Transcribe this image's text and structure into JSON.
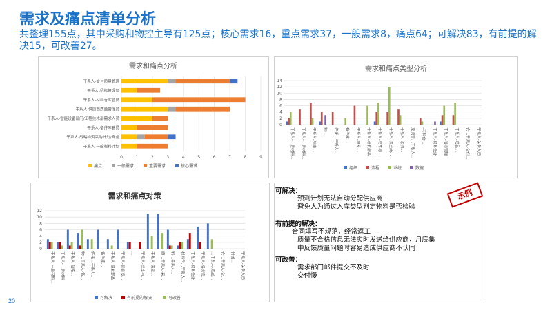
{
  "header": {
    "title": "需求及痛点清单分析",
    "summary": "共整理155点，其中采购和物控主导有125点；核心需求16，重点需求37，一般需求8，痛点64；可解决83，有前提的解决15，可改善27。"
  },
  "page_number": "20",
  "stamp": "示例",
  "notes": {
    "solvable_title": "可解决：",
    "solvable_items": [
      "预测计划无法自动分配供应商",
      "避免人为通过入库类型判定物料是否检验"
    ],
    "conditional_title": "有前提的解决：",
    "conditional_items": [
      "合同填写不规范，经常返工",
      "质量不合格信息无法实时发送给供应商，月底集",
      "中反馈质量问题时容易造成供应商不认同"
    ],
    "improvable_title": "可改善：",
    "improvable_items": [
      "需求部门邮件提交不及时",
      "交付慢"
    ]
  },
  "colors": {
    "accent": "#1a73c9",
    "stamp": "#c00000"
  },
  "chart_data": [
    {
      "type": "bar",
      "orientation": "horizontal",
      "stacked": true,
      "title": "需求和痛点分析",
      "categories": [
        "干系人-交付质量管理",
        "干系人-招标管理部",
        "干系人-材料仓库管员",
        "干系人-供应商质量管理员",
        "干系人-智能设备部门/工程技术部需求人员",
        "干系人-备件库管员",
        "干系人-战略物资采购计划/商务",
        "干系人-一般材料计划"
      ],
      "series": [
        {
          "name": "痛点",
          "color": "#ffc000",
          "values": [
            3,
            1,
            2,
            3,
            2,
            1,
            1,
            1
          ]
        },
        {
          "name": "一般需求",
          "color": "#a5a5a5",
          "values": [
            0.5,
            0,
            0,
            0.5,
            0,
            0,
            0.5,
            0
          ]
        },
        {
          "name": "重要需求",
          "color": "#ed7d31",
          "values": [
            3.5,
            1.5,
            6,
            3.5,
            1,
            2,
            1.5,
            2
          ]
        },
        {
          "name": "核心需求",
          "color": "#4472c4",
          "values": [
            0.5,
            0,
            0,
            0,
            0,
            0,
            0.5,
            0
          ]
        }
      ],
      "xlim": [
        0,
        9
      ],
      "xticks": [
        "0",
        "1",
        "2",
        "3",
        "4",
        "5",
        "6",
        "7",
        "8",
        "9"
      ],
      "legend": "bottom"
    },
    {
      "type": "bar",
      "title": "需求和痛点类型分析",
      "categories": [
        "干系人-一般材料…",
        "干系人-一般材料…",
        "干系人-战略…",
        "物…",
        "件采…干系人…",
        "备件库…",
        "干系人-研发…",
        "干系人-研发部品",
        "干系人-成本与…",
        "干系人-供应商…",
        "干系人-采购…",
        "采购管…干系人…",
        "-材料仓…",
        "干系人-财务会计",
        "干系人-招标管理",
        "干系人-成品…",
        "仓…干系人-交付…",
        "干系人-关务人员"
      ],
      "series": [
        {
          "name": "组织",
          "color": "#4472c4",
          "values": [
            1,
            0,
            0,
            1,
            0,
            0,
            0,
            0,
            1,
            0,
            0,
            0,
            0,
            0,
            1,
            0,
            0,
            0
          ]
        },
        {
          "name": "流程",
          "color": "#c0504d",
          "values": [
            2,
            5,
            7,
            4,
            4,
            0,
            6,
            0,
            4,
            4,
            5,
            0,
            2,
            0,
            3,
            3,
            0,
            0
          ]
        },
        {
          "name": "系统",
          "color": "#9bbb59",
          "values": [
            4,
            0,
            2,
            0,
            0,
            2,
            0,
            6,
            7,
            12,
            3,
            0,
            1,
            0,
            6,
            7,
            0,
            0
          ]
        },
        {
          "name": "数据",
          "color": "#8064a2",
          "values": [
            0,
            0,
            0,
            3,
            0,
            0,
            0,
            0,
            0,
            0,
            0,
            0,
            0,
            1,
            0,
            0,
            0,
            0
          ]
        }
      ],
      "ylim": [
        0,
        14
      ],
      "yticks": [
        "0",
        "2",
        "4",
        "6",
        "8",
        "10",
        "12",
        "14"
      ],
      "legend": "bottom"
    },
    {
      "type": "bar",
      "title": "需求和痛点对策",
      "categories": [
        "干系人-一般材料…",
        "干系人-一般材料",
        "干系人-战略…",
        "物…干系人-备…",
        "件采…干系人…",
        "备件库…",
        "干系人-研发部品",
        "干系人-智能设…",
        "…",
        "干系人-成本与…",
        "干系人-供应…",
        "商…干系人-采…",
        "料…干系人…",
        "材料仓…干系人…",
        "干系人-财务会计",
        "干系人-招标管…",
        "…干系人-成品…",
        "仓…干系人-交…",
        "付团…",
        "干系人-关务人员"
      ],
      "series": [
        {
          "name": "可解决",
          "color": "#4472c4",
          "values": [
            3,
            2,
            6,
            5,
            3,
            6,
            3,
            6,
            2,
            0,
            11,
            11,
            6,
            1,
            3,
            7,
            8,
            0,
            0,
            0
          ]
        },
        {
          "name": "有前提的解决",
          "color": "#c00000",
          "values": [
            2,
            2,
            1,
            1,
            0,
            0,
            0,
            0,
            2,
            2,
            0,
            0,
            1,
            2,
            5,
            2,
            0,
            0,
            0,
            0
          ]
        },
        {
          "name": "可改善",
          "color": "#9bbb59",
          "values": [
            2,
            1,
            2,
            6,
            3,
            0,
            1,
            0,
            0,
            0,
            4,
            5,
            1,
            2,
            0,
            0,
            3,
            0,
            0,
            0
          ]
        }
      ],
      "ylim": [
        0,
        12
      ],
      "yticks": [
        "0",
        "2",
        "4",
        "6",
        "8",
        "10",
        "12"
      ],
      "legend": "bottom"
    }
  ]
}
